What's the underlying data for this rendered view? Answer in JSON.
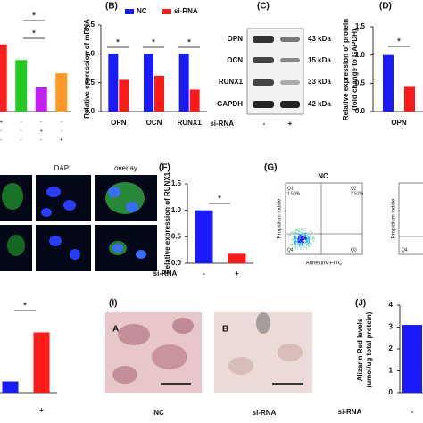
{
  "panel_labels": [
    "(B)",
    "(C)",
    "(D)",
    "(F)",
    "(G)",
    "(I)",
    "(J)"
  ],
  "chart_data": [
    {
      "type": "bar",
      "categories": [
        null,
        null,
        null,
        null
      ],
      "values": [
        0.86,
        0.66,
        0.31,
        0.49
      ],
      "colors": [
        "#ff2020",
        "#22cc22",
        "#c020f0",
        "#ff9922"
      ],
      "ylim": [
        0,
        1.2
      ],
      "annotations": [
        "*",
        "*"
      ],
      "signs": [
        [
          "+",
          "-",
          "-",
          "-"
        ],
        [
          "-",
          "-",
          "+",
          "-"
        ],
        [
          "-",
          "-",
          "-",
          "+"
        ]
      ]
    },
    {
      "type": "bar",
      "categories": [
        "OPN",
        "OCN",
        "RUNX1"
      ],
      "series": [
        {
          "name": "NC",
          "color": "#1a1aff",
          "values": [
            1.0,
            1.0,
            1.0
          ]
        },
        {
          "name": "si-RNA",
          "color": "#ff1a1a",
          "values": [
            0.55,
            0.62,
            0.38
          ]
        }
      ],
      "ylabel": [
        "Relative expression of mRNA"
      ],
      "ylim": [
        0,
        1.5
      ],
      "yticks": [
        {
          "value": 0,
          "label": "0.0"
        },
        {
          "value": 0.5,
          "label": "0.5"
        },
        {
          "value": 1,
          "label": "1.0"
        },
        {
          "value": 1.5,
          "label": "1.5"
        }
      ],
      "annotations": [
        "*",
        "*",
        "*"
      ],
      "legend": "top"
    },
    {
      "type": "bar",
      "categories": [
        "OPN"
      ],
      "series": [
        {
          "name": "NC",
          "color": "#1a1aff",
          "values": [
            1.0
          ]
        },
        {
          "name": "si-RNA",
          "color": "#ff1a1a",
          "values": [
            0.45
          ]
        }
      ],
      "ylabel": [
        "Relative expression of protein",
        "(fold change to GAPDH)"
      ],
      "ylim": [
        0,
        1.5
      ],
      "yticks": [
        {
          "value": 0,
          "label": "0.0"
        },
        {
          "value": 0.5,
          "label": "0.5"
        },
        {
          "value": 1,
          "label": "1.0"
        },
        {
          "value": 1.5,
          "label": "1.5"
        }
      ],
      "annotations": [
        "*"
      ]
    },
    {
      "type": "bar",
      "categories": [
        "-",
        "+"
      ],
      "values": [
        1.0,
        0.18
      ],
      "colors": [
        "#1a1aff",
        "#ff1a1a"
      ],
      "xlabel": "si-RNA",
      "ylabel": [
        "Relative expression of RUNX1"
      ],
      "ylim": [
        0,
        1.5
      ],
      "yticks": [
        {
          "value": 0,
          "label": "0.0"
        },
        {
          "value": 0.5,
          "label": "0.5"
        },
        {
          "value": 1,
          "label": "1.0"
        },
        {
          "value": 1.5,
          "label": "1.5"
        }
      ],
      "annotations": [
        "*"
      ]
    },
    {
      "type": "bar",
      "categories": [
        null,
        "+"
      ],
      "values": [
        1.0,
        5.4
      ],
      "colors": [
        "#1a1aff",
        "#ff1a1a"
      ],
      "ylim": [
        0,
        8
      ],
      "annotations": [
        "*"
      ]
    },
    {
      "type": "bar",
      "categories": [
        "-"
      ],
      "values": [
        3.1
      ],
      "colors": [
        "#1a1aff"
      ],
      "xlabel": "si-RNA",
      "ylabel": [
        "Alizarin Red levels",
        "(umol/ug total protein)"
      ],
      "ylim": [
        0,
        4
      ],
      "yticks": [
        0,
        1,
        2,
        3,
        4
      ]
    }
  ],
  "blot": {
    "rows": [
      "OPN",
      "OCN",
      "RUNX1",
      "GAPDH"
    ],
    "sizes": [
      "43 kDa",
      "15 kDa",
      "33 kDa",
      "42 kDa"
    ],
    "treatment": "si-RNA",
    "lanes": [
      "-",
      "+"
    ]
  },
  "microscopy": {
    "columns": [
      "DAPI",
      "overlay"
    ]
  },
  "flow": {
    "title": "NC",
    "quadrants": [
      "Q1",
      "1.50%",
      "Q2",
      "2.52%",
      "Q3",
      "Q4"
    ],
    "ylabel": "Propidium iodide",
    "xlabel": "AnnexinV-FITC",
    "second_ylabel": "Propidium iodide",
    "second_quadrant": "Q4"
  },
  "staining": {
    "images": [
      "A",
      "B"
    ],
    "labels": [
      "NC",
      "si-RNA"
    ]
  }
}
